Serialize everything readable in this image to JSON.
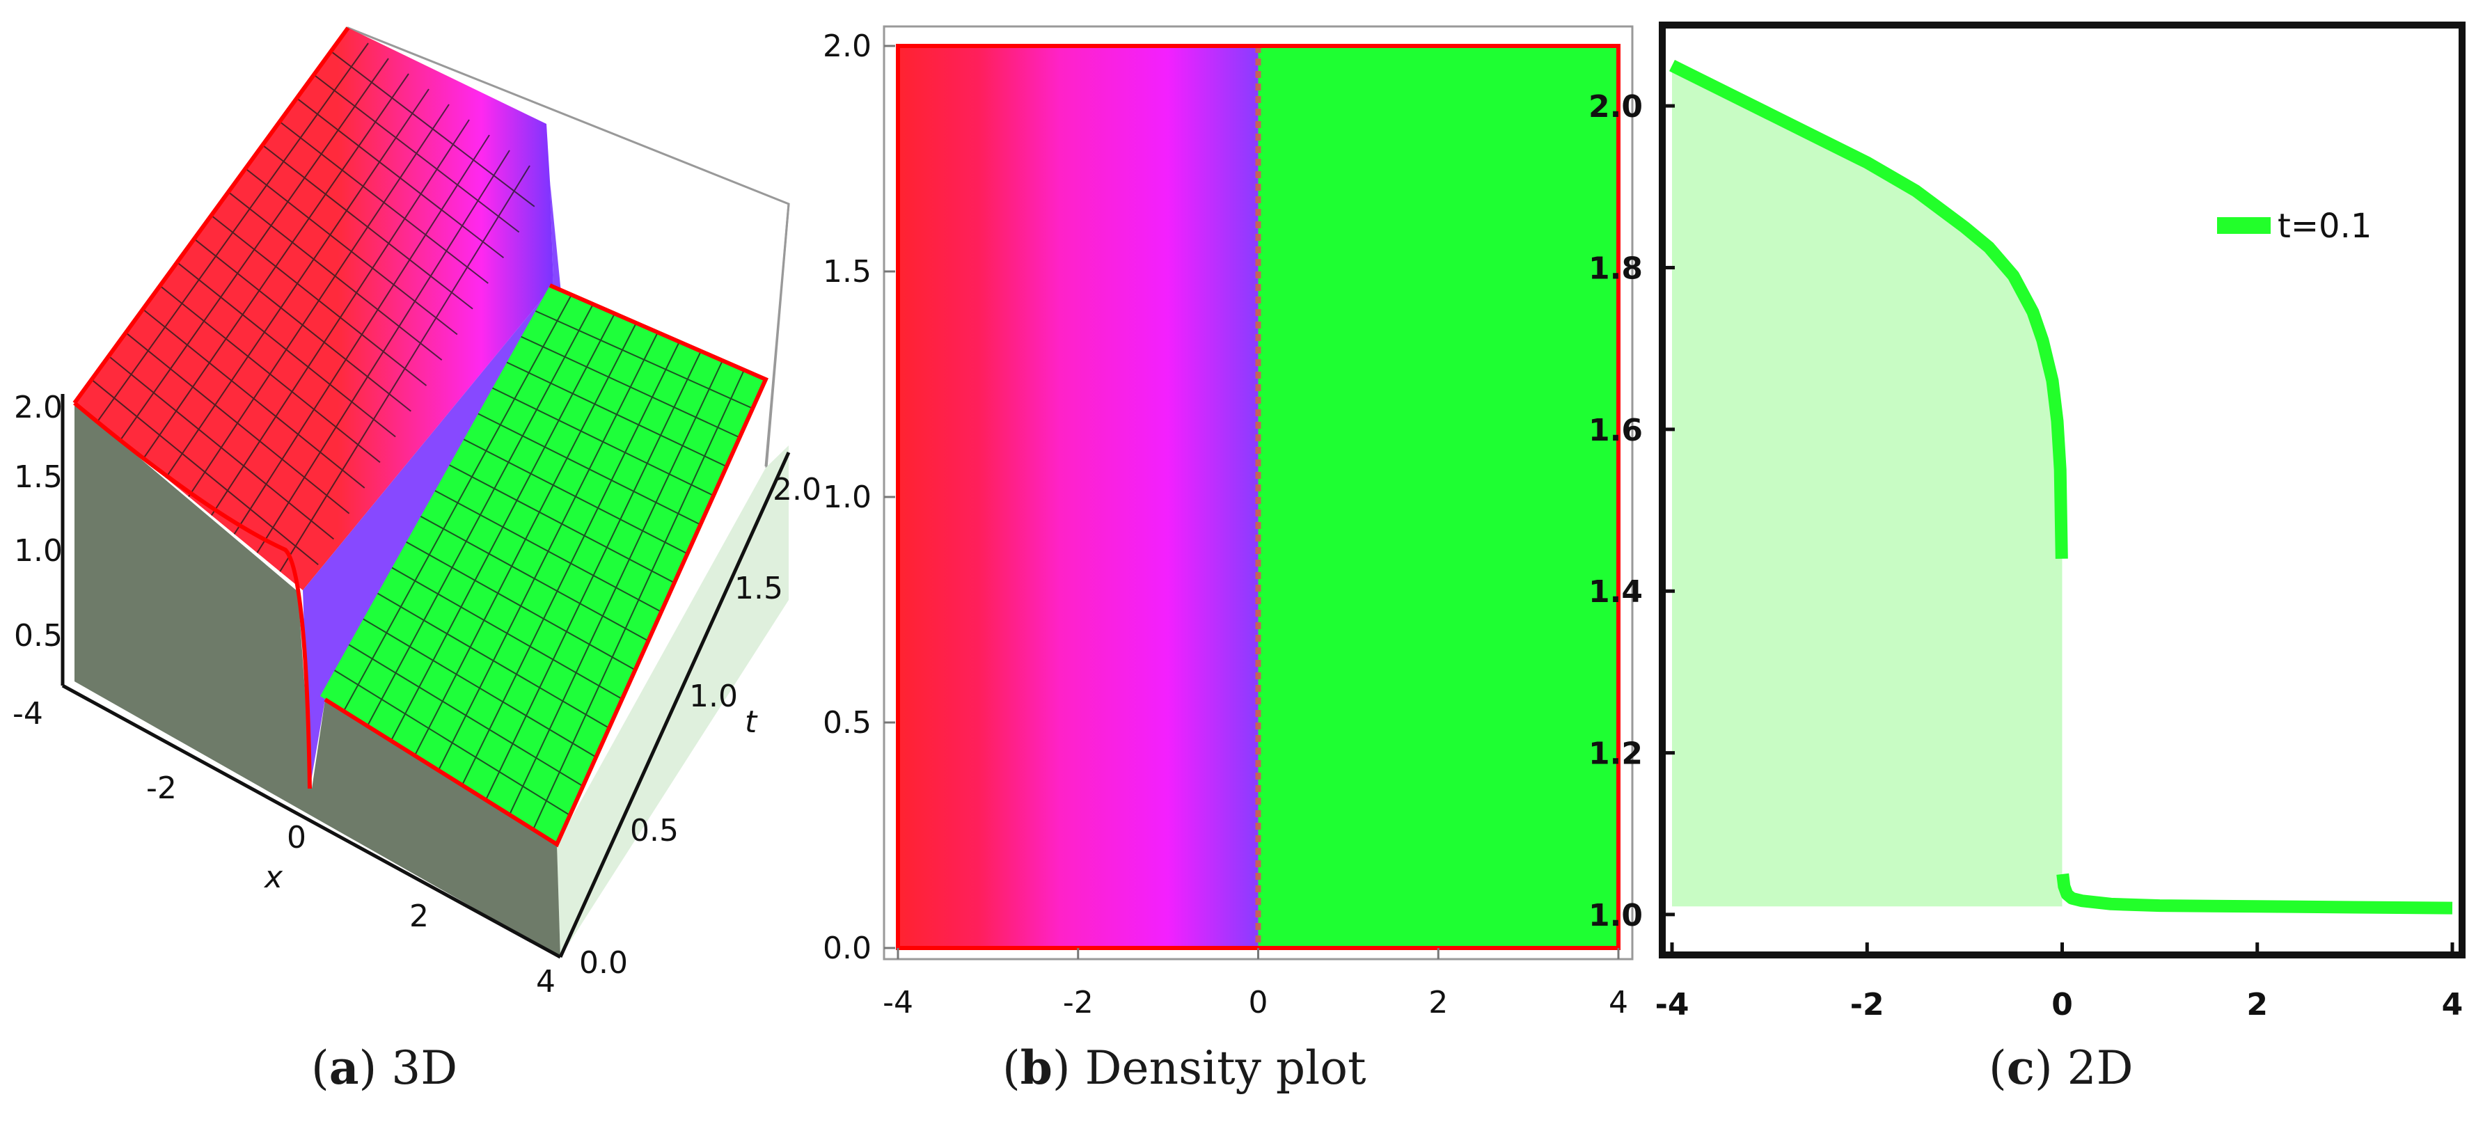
{
  "captions": {
    "a": {
      "letter": "a",
      "text": "3D"
    },
    "b": {
      "letter": "b",
      "text": "Density plot"
    },
    "c": {
      "letter": "c",
      "text": "2D"
    }
  },
  "chart_data": [
    {
      "id": "a",
      "type": "surface3d",
      "x_axis": {
        "label": "x",
        "ticks": [
          "-4",
          "-2",
          "0",
          "2",
          "4"
        ],
        "range": [
          -4,
          4
        ]
      },
      "t_axis": {
        "label": "t",
        "ticks": [
          "0.0",
          "0.5",
          "1.0",
          "1.5",
          "2.0"
        ],
        "range": [
          0,
          2
        ]
      },
      "z_axis": {
        "label": "",
        "ticks": [
          "0.5",
          "1.0",
          "1.5",
          "2.0"
        ],
        "range": [
          0.3,
          2.1
        ]
      },
      "colors": {
        "left_face": "#ff2a3c",
        "mid_face": "#ff28f0",
        "cliff": "#7a35ff",
        "right_face": "#1eff3a",
        "wall": "#6e7b69",
        "wall_light": "#dff0dd",
        "edge": "#ff0000",
        "mesh": "#1a1a1a"
      }
    },
    {
      "id": "b",
      "type": "heatmap",
      "x_axis": {
        "ticks": [
          "-4",
          "-2",
          "0",
          "2",
          "4"
        ],
        "range": [
          -4,
          4
        ]
      },
      "y_axis": {
        "ticks": [
          "0.0",
          "0.5",
          "1.0",
          "1.5",
          "2.0"
        ],
        "range": [
          0,
          2
        ]
      },
      "regions": [
        {
          "x_from": -4,
          "x_to": 0,
          "gradient": [
            "#ff2330",
            "#ff1f5c",
            "#ff22c8",
            "#f320ff",
            "#8a3cff"
          ]
        },
        {
          "x_from": 0,
          "x_to": 4,
          "color": "#1eff32"
        }
      ],
      "border_color": "#ff0000"
    },
    {
      "id": "c",
      "type": "line",
      "series": [
        {
          "name": "t=0.1",
          "color": "#22ff2a",
          "fill": "#c8fcc4",
          "x": [
            -4,
            -3.5,
            -3,
            -2.5,
            -2,
            -1.5,
            -1,
            -0.75,
            -0.5,
            -0.3,
            -0.2,
            -0.1,
            -0.05,
            -0.02,
            -0.005
          ],
          "y": [
            2.05,
            2.02,
            1.99,
            1.96,
            1.93,
            1.895,
            1.85,
            1.825,
            1.79,
            1.745,
            1.71,
            1.66,
            1.61,
            1.55,
            1.44
          ]
        },
        {
          "name": "",
          "color": "#22ff2a",
          "x": [
            0.005,
            0.02,
            0.05,
            0.1,
            0.2,
            0.5,
            1,
            2,
            3,
            4
          ],
          "y": [
            1.05,
            1.035,
            1.025,
            1.02,
            1.017,
            1.013,
            1.011,
            1.01,
            1.009,
            1.008
          ]
        }
      ],
      "x_axis": {
        "ticks": [
          "-4",
          "-2",
          "0",
          "2",
          "4"
        ],
        "range": [
          -4.1,
          4.1
        ]
      },
      "y_axis": {
        "ticks": [
          "1.0",
          "1.2",
          "1.4",
          "1.6",
          "1.8",
          "2.0"
        ],
        "range": [
          0.95,
          2.1
        ]
      },
      "legend": {
        "label": "t=0.1",
        "position": "top-right"
      },
      "fill_baseline": 1.01
    }
  ]
}
